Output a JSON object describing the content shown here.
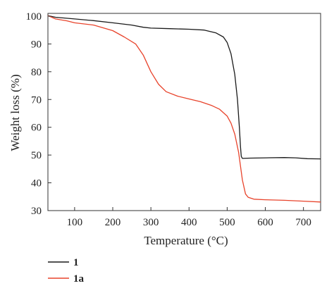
{
  "chart_data": {
    "type": "line",
    "xlabel": "Temperature (°C)",
    "ylabel": "Weight loss (%)",
    "xlim": [
      30,
      745
    ],
    "ylim": [
      30,
      101
    ],
    "xticks": [
      100,
      200,
      300,
      400,
      500,
      600,
      700
    ],
    "yticks": [
      30,
      40,
      50,
      60,
      70,
      80,
      90,
      100
    ],
    "grid": false,
    "legend_position": "bottom-left",
    "series": [
      {
        "name": "1",
        "color": "#1a1a1a",
        "points": [
          [
            30,
            100.2
          ],
          [
            50,
            99.6
          ],
          [
            100,
            99.0
          ],
          [
            150,
            98.4
          ],
          [
            200,
            97.6
          ],
          [
            250,
            96.8
          ],
          [
            280,
            96.0
          ],
          [
            300,
            95.7
          ],
          [
            350,
            95.5
          ],
          [
            400,
            95.3
          ],
          [
            440,
            95.0
          ],
          [
            470,
            94.0
          ],
          [
            490,
            92.5
          ],
          [
            500,
            90.5
          ],
          [
            510,
            86.5
          ],
          [
            520,
            79.0
          ],
          [
            527,
            70.0
          ],
          [
            532,
            60.0
          ],
          [
            535,
            53.0
          ],
          [
            537,
            49.5
          ],
          [
            540,
            48.8
          ],
          [
            560,
            48.9
          ],
          [
            600,
            49.0
          ],
          [
            650,
            49.1
          ],
          [
            680,
            49.0
          ],
          [
            710,
            48.7
          ],
          [
            745,
            48.6
          ]
        ]
      },
      {
        "name": "1a",
        "color": "#e8432b",
        "points": [
          [
            30,
            100.2
          ],
          [
            50,
            99.0
          ],
          [
            80,
            98.3
          ],
          [
            100,
            97.6
          ],
          [
            150,
            96.8
          ],
          [
            200,
            94.8
          ],
          [
            230,
            92.5
          ],
          [
            260,
            90.0
          ],
          [
            280,
            86.0
          ],
          [
            300,
            80.0
          ],
          [
            320,
            75.5
          ],
          [
            340,
            72.8
          ],
          [
            370,
            71.2
          ],
          [
            400,
            70.2
          ],
          [
            430,
            69.2
          ],
          [
            460,
            67.8
          ],
          [
            480,
            66.5
          ],
          [
            500,
            64.0
          ],
          [
            510,
            61.5
          ],
          [
            520,
            57.5
          ],
          [
            530,
            51.0
          ],
          [
            540,
            41.0
          ],
          [
            548,
            36.0
          ],
          [
            555,
            34.8
          ],
          [
            570,
            34.1
          ],
          [
            600,
            33.9
          ],
          [
            650,
            33.7
          ],
          [
            700,
            33.4
          ],
          [
            745,
            33.1
          ]
        ]
      }
    ]
  }
}
